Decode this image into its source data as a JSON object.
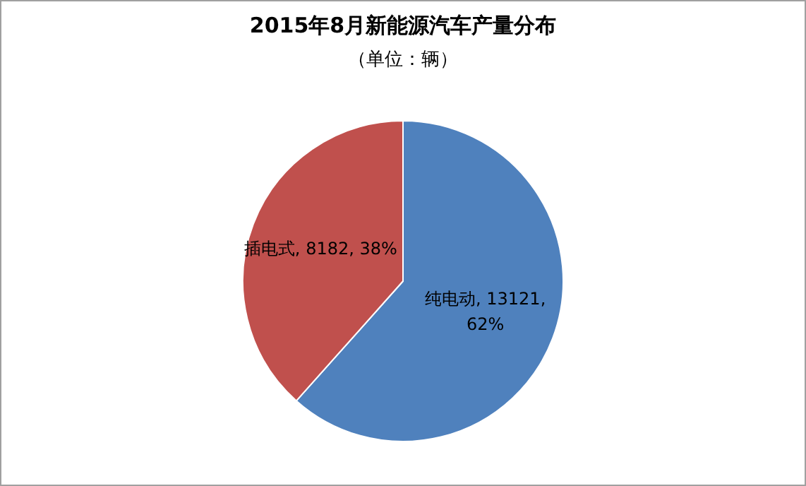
{
  "chart_data": {
    "type": "pie",
    "title": "2015年8月新能源汽车产量分布",
    "subtitle": "（单位：辆）",
    "categories": [
      "纯电动",
      "插电式"
    ],
    "values": [
      13121,
      8182
    ],
    "colors": [
      "#4f81bd",
      "#c0504d"
    ],
    "value_labels": [
      "13121, 62%",
      "8182, 38%"
    ],
    "legend": false
  }
}
